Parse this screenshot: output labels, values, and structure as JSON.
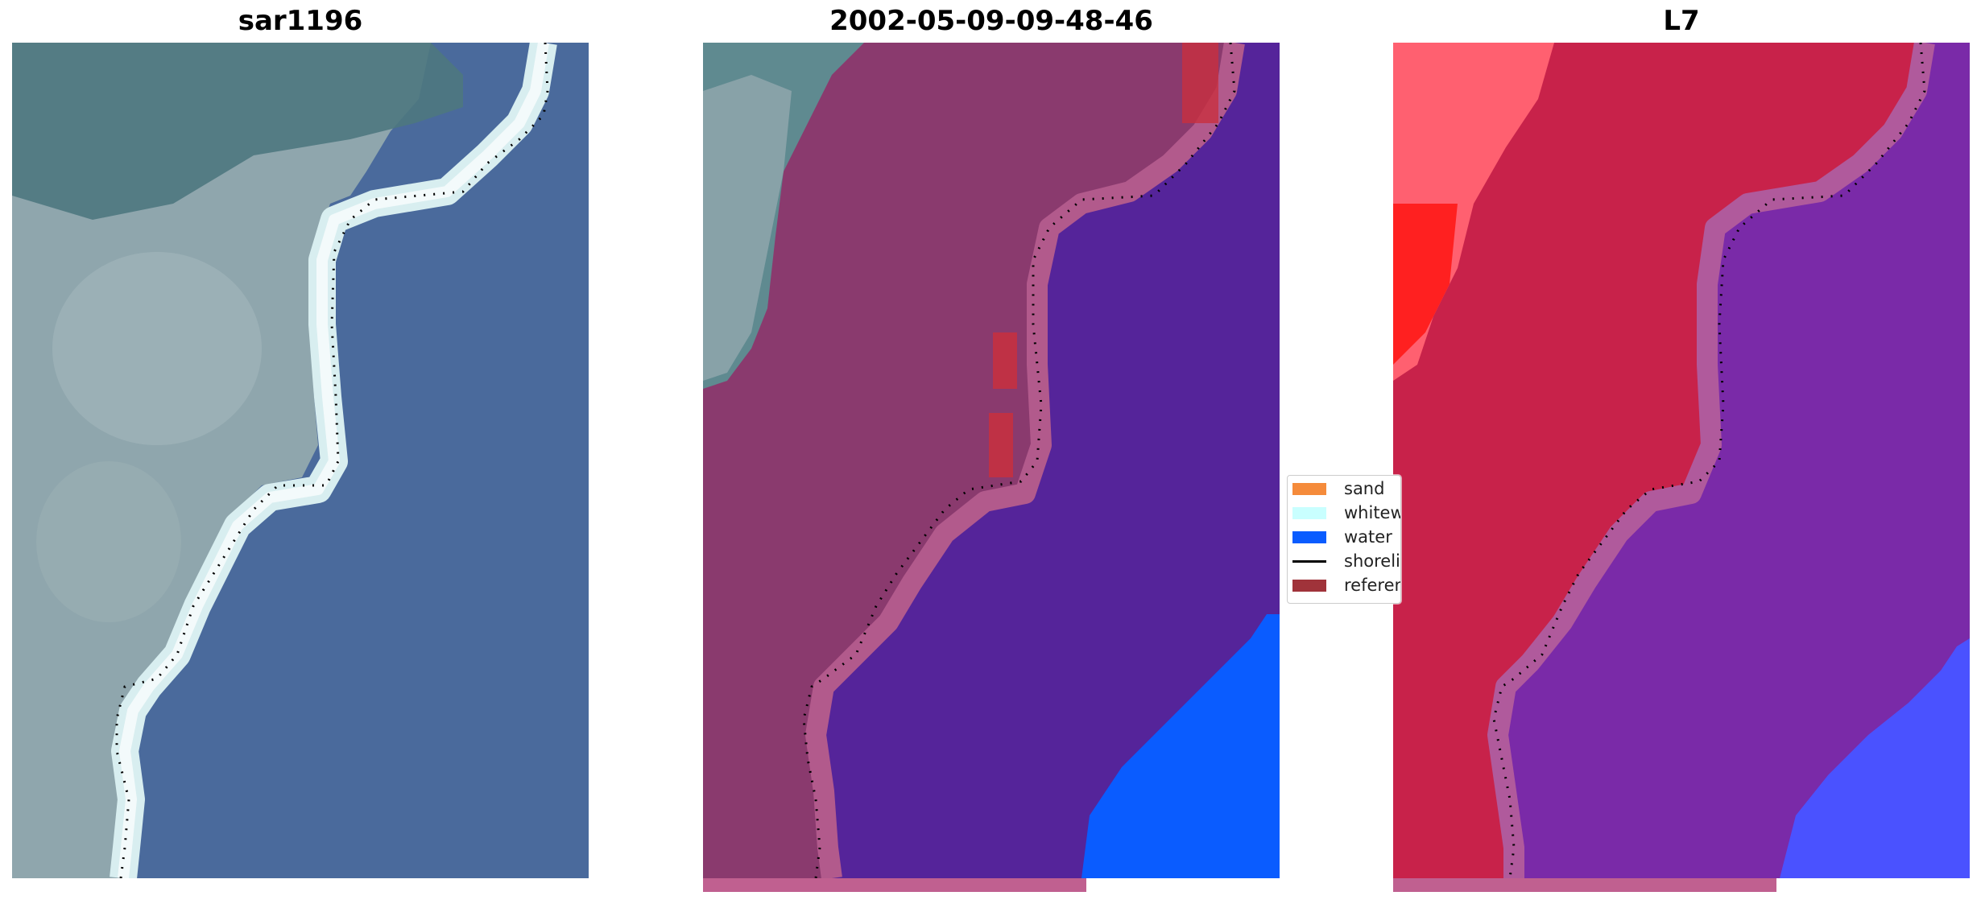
{
  "panels": [
    {
      "title": "sar1196"
    },
    {
      "title": "2002-05-09-09-48-46"
    },
    {
      "title": "L7"
    }
  ],
  "legend": {
    "items": [
      {
        "label": "sand",
        "color": "#f58b3b",
        "kind": "patch"
      },
      {
        "label": "whitewater",
        "color": "#c9ffff",
        "kind": "patch"
      },
      {
        "label": "water",
        "color": "#0a5cff",
        "kind": "patch"
      },
      {
        "label": "shoreline",
        "color": "#000000",
        "kind": "line"
      },
      {
        "label": "reference shoreline",
        "color": "#a0333a",
        "kind": "patch"
      }
    ]
  },
  "colors": {
    "rgb_water": "#4a6a9c",
    "rgb_land": "#8fa6ad",
    "rgb_dark_land": "#4e7880",
    "rgb_surf": "#d8eef0",
    "class_land": "#8a3a6e",
    "class_land_light": "#b25a8c",
    "class_water_dark": "#55249a",
    "class_water": "#0a5cff",
    "class_reference": "#c8303e",
    "l7_red": "#c8224a",
    "l7_bright_red": "#ff3030",
    "l7_purple": "#7a2aa8",
    "l7_blue": "#4a52ff",
    "strip": "#c06090"
  }
}
